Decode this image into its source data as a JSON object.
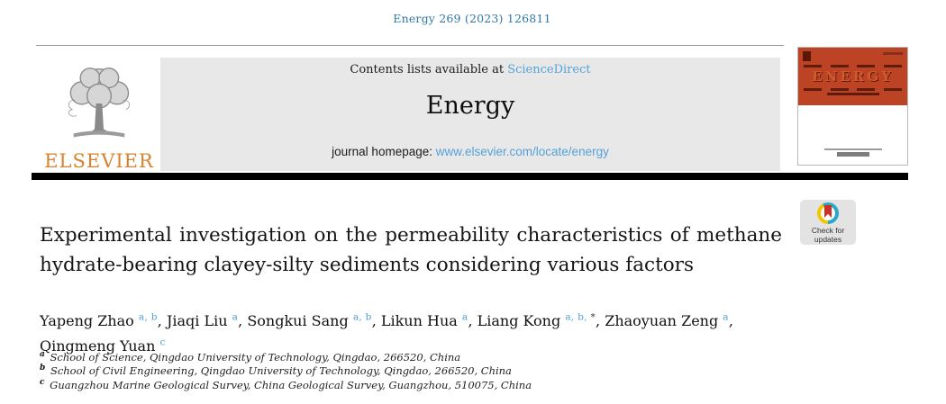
{
  "colors": {
    "citation_blue": "#3179a5",
    "link_blue": "#55a2d8",
    "sup_blue": "#4d9fd6",
    "elsevier_orange": "#d8822d",
    "banner_gray": "#e8e8e8",
    "cover_orange": "#bc4425",
    "badge_yellow": "#f2c500",
    "badge_teal": "#27a9cb",
    "badge_red": "#cf2e26"
  },
  "page": {
    "citation": "Energy 269 (2023) 126811"
  },
  "header": {
    "contents_prefix": "Contents lists available at ",
    "sciencedirect_label": "ScienceDirect",
    "journal_title": "Energy",
    "homepage_prefix": "journal homepage: ",
    "homepage_url": "www.elsevier.com/locate/energy",
    "elsevier_label": "ELSEVIER"
  },
  "cover": {
    "journal_name": "ENERGY"
  },
  "badge": {
    "line1": "Check for",
    "line2": "updates"
  },
  "article": {
    "title": "Experimental investigation on the permeability characteristics of methane hydrate-bearing clayey-silty sediments considering various factors",
    "title_lines": [
      "Experimental investigation on the permeability characteristics of methane",
      "hydrate-bearing clayey-silty sediments considering various factors"
    ],
    "authors": [
      {
        "name": "Yapeng Zhao",
        "sups": [
          "a",
          "b"
        ]
      },
      {
        "name": "Jiaqi Liu",
        "sups": [
          "a"
        ]
      },
      {
        "name": "Songkui Sang",
        "sups": [
          "a",
          "b"
        ]
      },
      {
        "name": "Likun Hua",
        "sups": [
          "a"
        ]
      },
      {
        "name": "Liang Kong",
        "sups": [
          "a",
          "b",
          "*"
        ]
      },
      {
        "name": "Zhaoyuan Zeng",
        "sups": [
          "a"
        ]
      },
      {
        "name": "Qingmeng Yuan",
        "sups": [
          "c"
        ]
      }
    ],
    "affiliations": [
      {
        "sup": "a",
        "text": "School of Science, Qingdao University of Technology, Qingdao, 266520, China"
      },
      {
        "sup": "b",
        "text": "School of Civil Engineering, Qingdao University of Technology, Qingdao, 266520, China"
      },
      {
        "sup": "c",
        "text": "Guangzhou Marine Geological Survey, China Geological Survey, Guangzhou, 510075, China"
      }
    ]
  }
}
